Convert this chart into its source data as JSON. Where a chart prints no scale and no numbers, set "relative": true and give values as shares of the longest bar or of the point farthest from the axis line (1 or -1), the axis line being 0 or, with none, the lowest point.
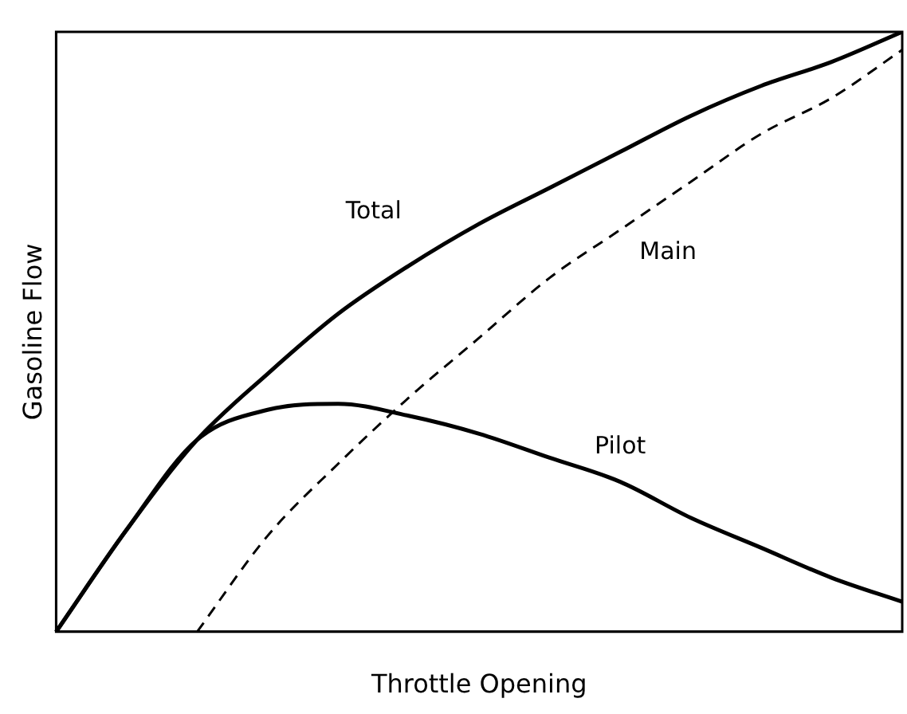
{
  "chart_data": {
    "type": "line",
    "relative": true,
    "xlabel": "Throttle Opening",
    "ylabel": "Gasoline Flow",
    "legend": false,
    "grid": false,
    "marker": "none",
    "categories": [
      null,
      null,
      null,
      null,
      null,
      null,
      null,
      null,
      null,
      null,
      null,
      null,
      null
    ],
    "series": [
      {
        "name": "Total",
        "color": "#000000",
        "line_style": "solid",
        "values": [
          0,
          0.17,
          0.32,
          0.43,
          0.53,
          0.61,
          0.68,
          0.74,
          0.8,
          0.86,
          0.91,
          0.95,
          1
        ]
      },
      {
        "name": "Main",
        "color": "#000000",
        "line_style": "dashed",
        "values": [
          null,
          null,
          0,
          0.16,
          0.28,
          0.39,
          0.49,
          0.59,
          0.67,
          0.75,
          0.83,
          0.89,
          0.97
        ]
      },
      {
        "name": "Pilot",
        "color": "#000000",
        "line_style": "solid",
        "values": [
          0,
          0.17,
          0.32,
          0.37,
          0.38,
          0.36,
          0.33,
          0.29,
          0.25,
          0.19,
          0.14,
          0.09,
          0.05
        ]
      }
    ]
  }
}
